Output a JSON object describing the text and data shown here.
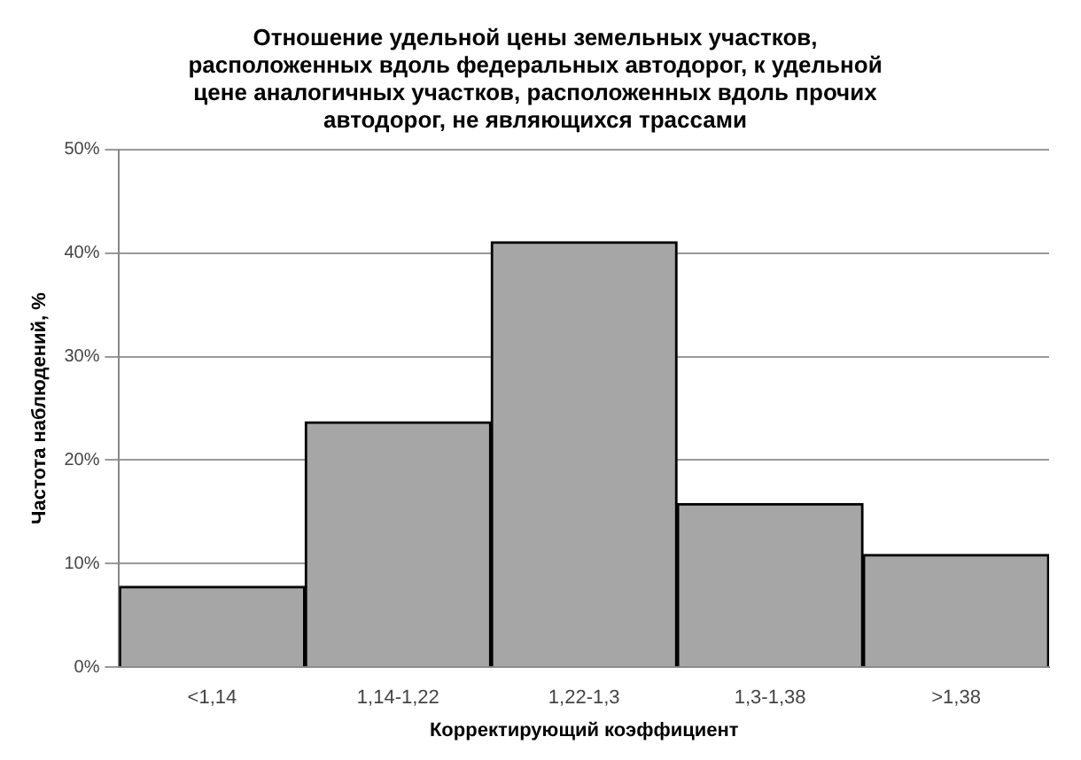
{
  "chart_data": {
    "type": "bar",
    "title": "Отношение удельной цены земельных участков,\nрасположенных вдоль федеральных автодорог, к удельной\nцене аналогичных участков, расположенных вдоль прочих\nавтодорог, не являющихся трассами",
    "xlabel": "Корректирующий коэффициент",
    "ylabel": "Частота наблюдений, %",
    "categories": [
      "<1,14",
      "1,14-1,22",
      "1,22-1,3",
      "1,3-1,38",
      ">1,38"
    ],
    "values": [
      7.8,
      23.7,
      41.1,
      15.8,
      10.9
    ],
    "color": "#a6a6a6",
    "ylim": [
      0,
      50
    ],
    "yticks": [
      {
        "value": 0,
        "label": "0%"
      },
      {
        "value": 10,
        "label": "10%"
      },
      {
        "value": 20,
        "label": "20%"
      },
      {
        "value": 30,
        "label": "30%"
      },
      {
        "value": 40,
        "label": "40%"
      },
      {
        "value": 50,
        "label": "50%"
      }
    ],
    "grid": "y",
    "legend": false
  }
}
